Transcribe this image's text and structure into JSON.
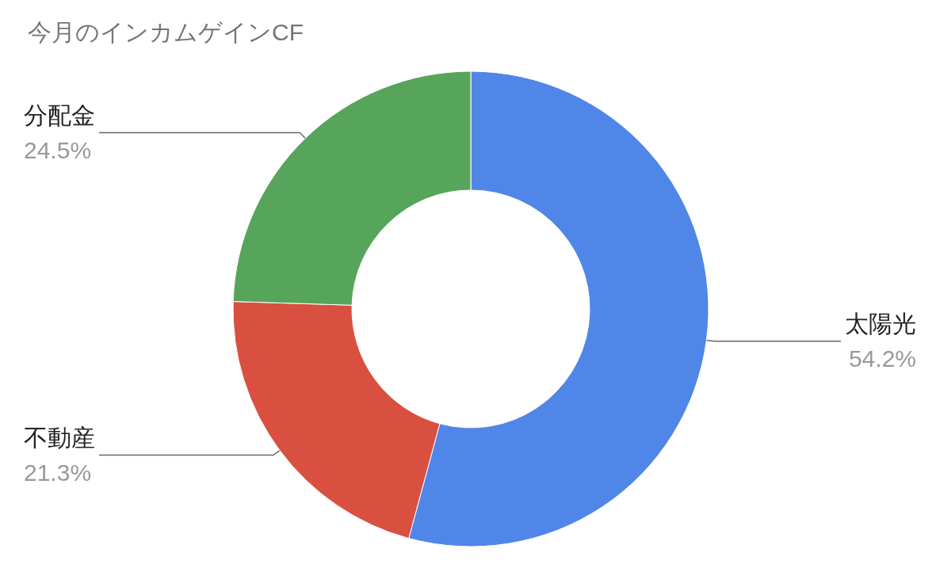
{
  "chart_data": {
    "type": "donut",
    "title": "今月のインカムゲインCF",
    "categories": [
      "太陽光",
      "不動産",
      "分配金"
    ],
    "values": [
      54.2,
      21.3,
      24.5
    ],
    "colors": [
      "#5086e8",
      "#d95040",
      "#57a55a"
    ],
    "value_labels": [
      "54.2%",
      "21.3%",
      "24.5%"
    ]
  }
}
